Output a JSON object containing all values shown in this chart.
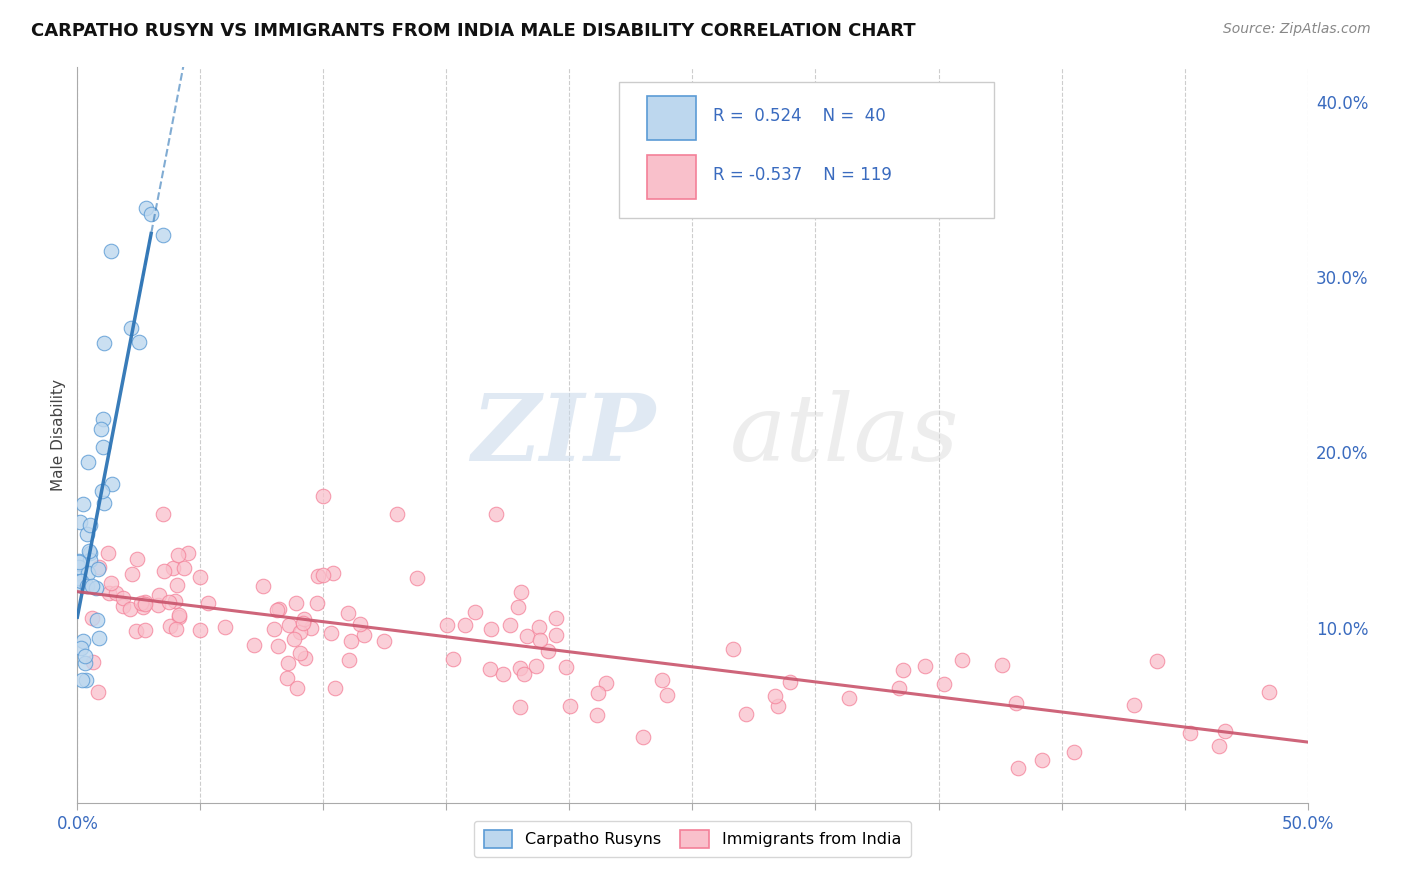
{
  "title": "CARPATHO RUSYN VS IMMIGRANTS FROM INDIA MALE DISABILITY CORRELATION CHART",
  "source": "Source: ZipAtlas.com",
  "ylabel": "Male Disability",
  "ylabel_right_ticks": [
    "10.0%",
    "20.0%",
    "30.0%",
    "40.0%"
  ],
  "ylabel_right_vals": [
    0.1,
    0.2,
    0.3,
    0.4
  ],
  "xlim": [
    0.0,
    0.5
  ],
  "ylim": [
    0.0,
    0.42
  ],
  "blue_color": "#5b9bd5",
  "blue_fill": "#bdd7ee",
  "pink_color": "#f48098",
  "pink_fill": "#f9c0cb",
  "trendline_blue_color": "#2e75b6",
  "trendline_pink_color": "#c9546c",
  "watermark_zip": "ZIP",
  "watermark_atlas": "atlas",
  "background_color": "#ffffff",
  "grid_color": "#c8c8c8",
  "legend_r_blue": "R =  0.524",
  "legend_n_blue": "N =  40",
  "legend_r_pink": "R = -0.537",
  "legend_n_pink": "N = 119"
}
